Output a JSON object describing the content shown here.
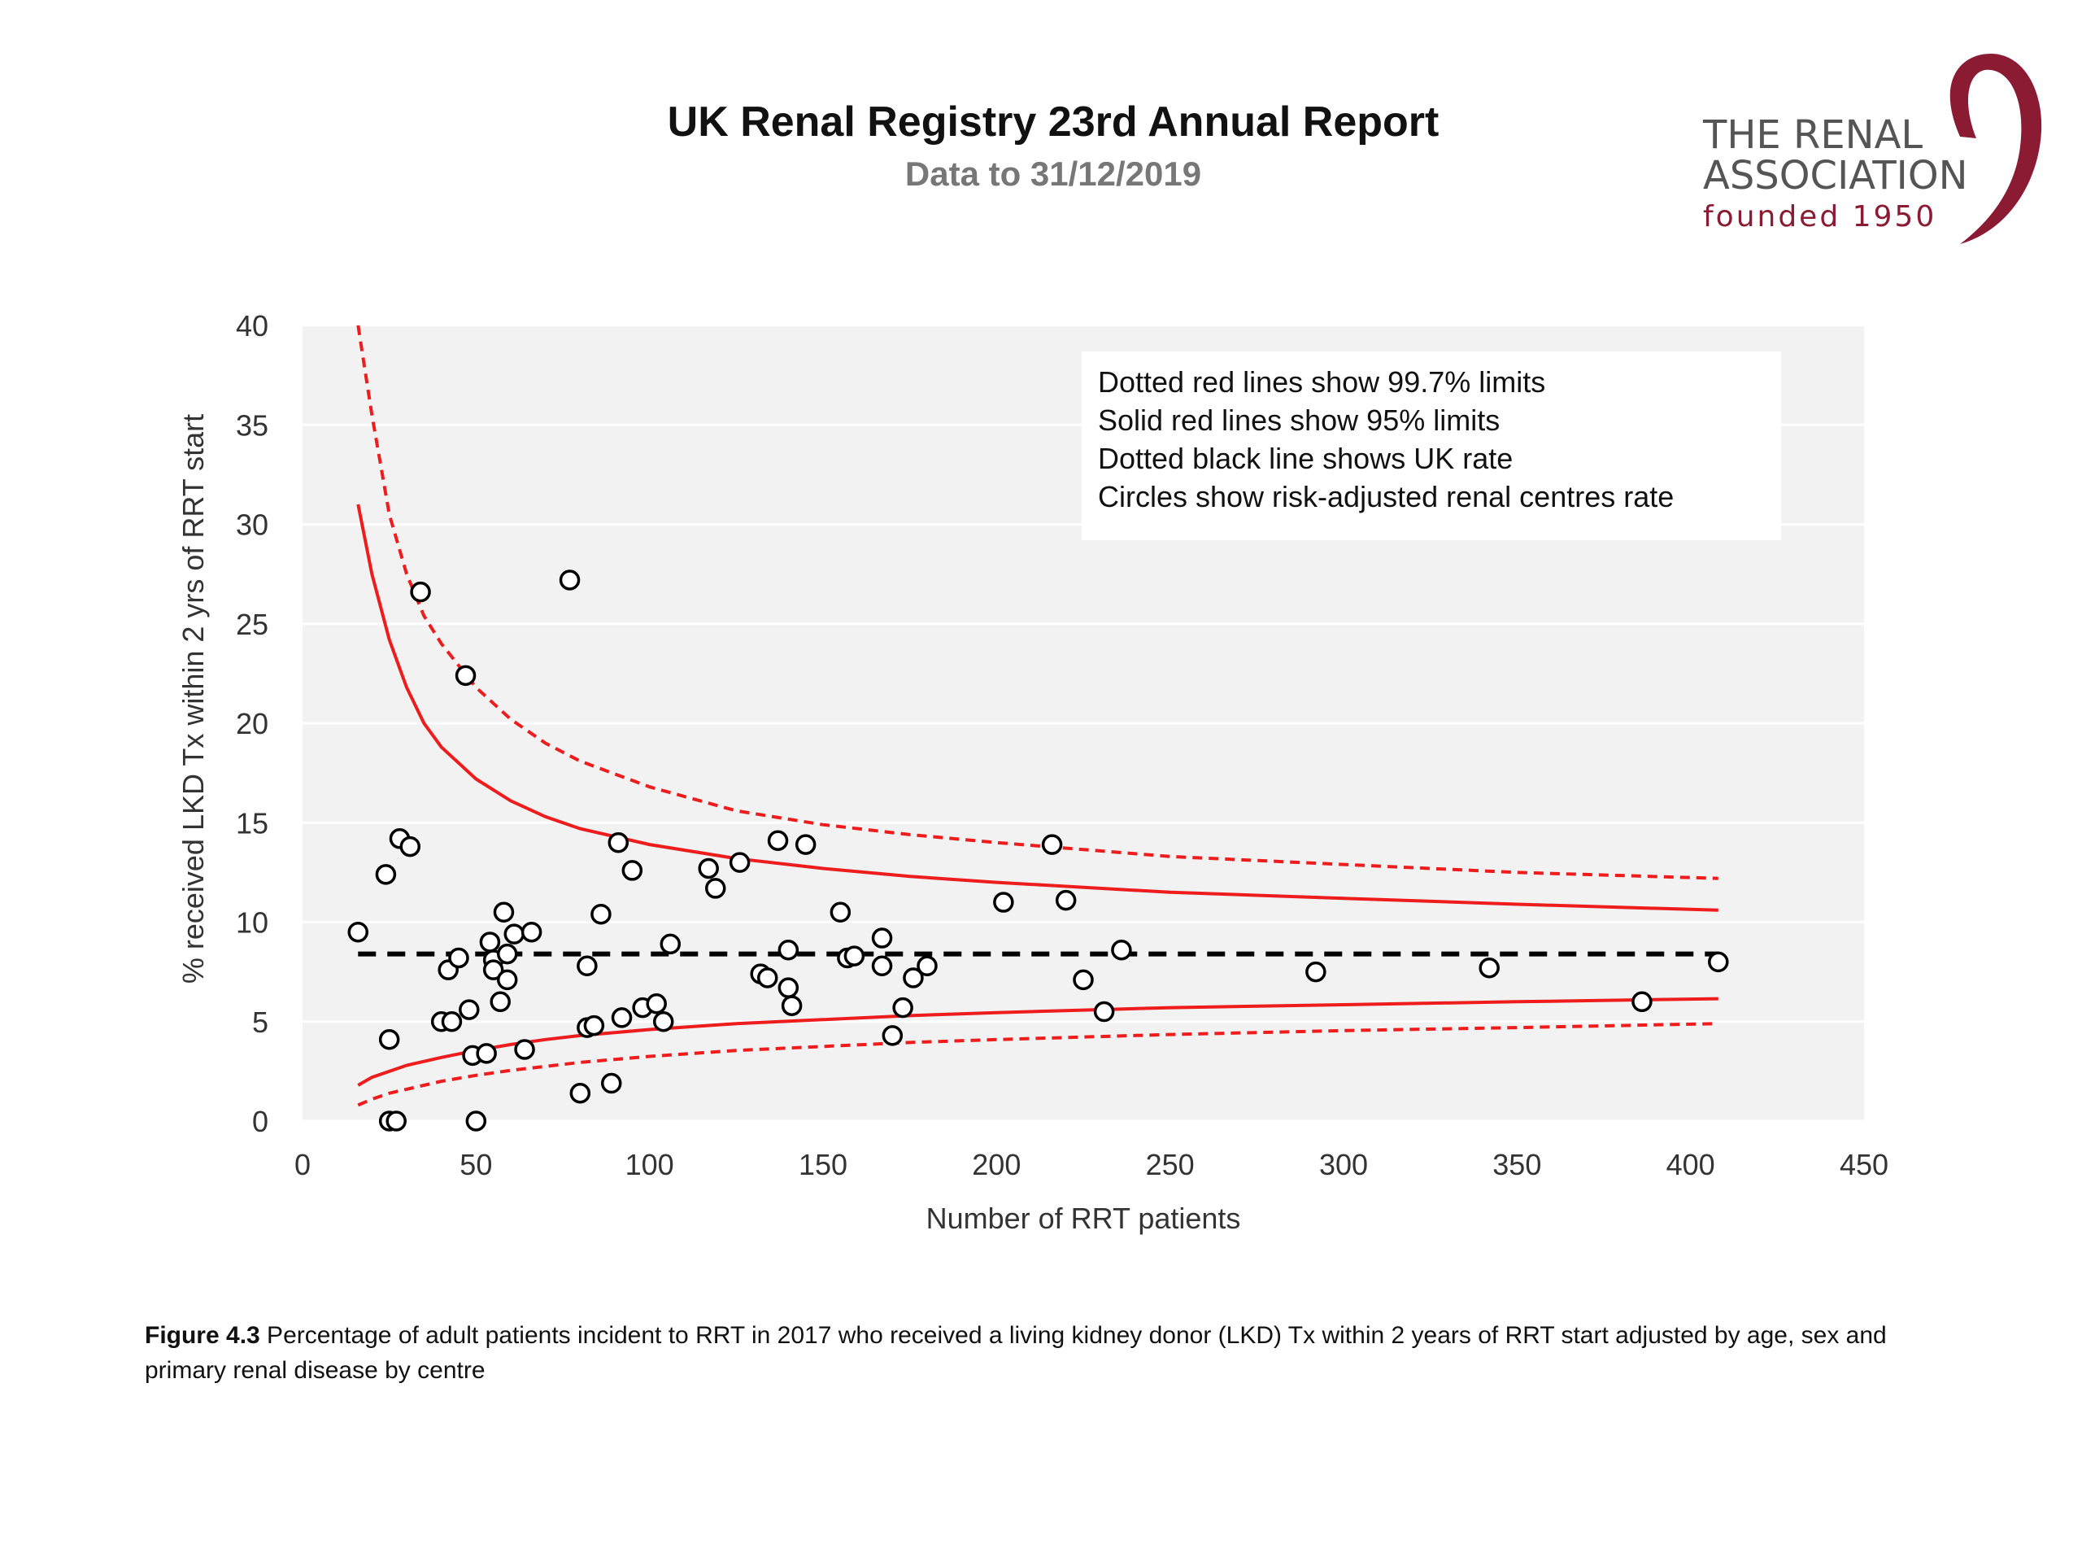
{
  "header": {
    "title": "UK Renal Registry 23rd Annual Report",
    "subtitle": "Data to 31/12/2019"
  },
  "logo": {
    "line1": "THE RENAL",
    "line2": "ASSOCIATION",
    "line3": "founded 1950",
    "color": "#8a1b33"
  },
  "chart_data": {
    "type": "scatter",
    "xlabel": "Number of RRT patients",
    "ylabel": "% received LKD Tx within 2 yrs of RRT start",
    "xlim": [
      0,
      450
    ],
    "ylim": [
      0,
      40
    ],
    "xticks": [
      0,
      50,
      100,
      150,
      200,
      250,
      300,
      350,
      400,
      450
    ],
    "yticks": [
      0,
      5,
      10,
      15,
      20,
      25,
      30,
      35,
      40
    ],
    "grid": "horizontal",
    "plot_background": "#f2f2f2",
    "legend_placement": "top-right",
    "legend_lines": [
      "Dotted red lines show 99.7% limits",
      "Solid red lines show 95% limits",
      "Dotted black line shows UK rate",
      "Circles show risk-adjusted renal centres rate"
    ],
    "uk_rate": 8.4,
    "limits_x": [
      16,
      20,
      25,
      30,
      35,
      40,
      50,
      60,
      70,
      80,
      100,
      125,
      150,
      175,
      200,
      250,
      300,
      350,
      408
    ],
    "upper_997": [
      41.0,
      35.5,
      30.5,
      27.5,
      25.4,
      24.0,
      21.8,
      20.2,
      19.0,
      18.1,
      16.8,
      15.6,
      14.9,
      14.4,
      14.0,
      13.3,
      12.9,
      12.5,
      12.2
    ],
    "upper_95": [
      31.0,
      27.5,
      24.2,
      21.8,
      20.0,
      18.8,
      17.2,
      16.1,
      15.3,
      14.7,
      13.9,
      13.2,
      12.7,
      12.3,
      12.0,
      11.5,
      11.2,
      10.9,
      10.6
    ],
    "lower_95": [
      1.8,
      2.2,
      2.5,
      2.8,
      3.0,
      3.2,
      3.55,
      3.85,
      4.1,
      4.3,
      4.6,
      4.9,
      5.1,
      5.3,
      5.45,
      5.7,
      5.85,
      6.0,
      6.15
    ],
    "lower_997": [
      0.8,
      1.1,
      1.4,
      1.6,
      1.8,
      2.0,
      2.3,
      2.55,
      2.75,
      2.95,
      3.25,
      3.55,
      3.75,
      3.95,
      4.1,
      4.35,
      4.55,
      4.7,
      4.9
    ],
    "points": [
      {
        "x": 16,
        "y": 9.5
      },
      {
        "x": 24,
        "y": 12.4
      },
      {
        "x": 25,
        "y": 4.1
      },
      {
        "x": 25,
        "y": 0
      },
      {
        "x": 27,
        "y": 0
      },
      {
        "x": 28,
        "y": 14.2
      },
      {
        "x": 31,
        "y": 13.8
      },
      {
        "x": 34,
        "y": 26.6
      },
      {
        "x": 40,
        "y": 5.0
      },
      {
        "x": 42,
        "y": 7.6
      },
      {
        "x": 43,
        "y": 5.0
      },
      {
        "x": 45,
        "y": 8.2
      },
      {
        "x": 47,
        "y": 22.4
      },
      {
        "x": 48,
        "y": 5.6
      },
      {
        "x": 49,
        "y": 3.3
      },
      {
        "x": 50,
        "y": 0
      },
      {
        "x": 53,
        "y": 3.4
      },
      {
        "x": 54,
        "y": 9.0
      },
      {
        "x": 55,
        "y": 8.1
      },
      {
        "x": 55,
        "y": 7.6
      },
      {
        "x": 57,
        "y": 6.0
      },
      {
        "x": 58,
        "y": 10.5
      },
      {
        "x": 59,
        "y": 8.4
      },
      {
        "x": 59,
        "y": 7.1
      },
      {
        "x": 61,
        "y": 9.4
      },
      {
        "x": 64,
        "y": 3.6
      },
      {
        "x": 66,
        "y": 9.5
      },
      {
        "x": 77,
        "y": 27.2
      },
      {
        "x": 80,
        "y": 1.4
      },
      {
        "x": 82,
        "y": 7.8
      },
      {
        "x": 82,
        "y": 4.7
      },
      {
        "x": 84,
        "y": 4.8
      },
      {
        "x": 86,
        "y": 10.4
      },
      {
        "x": 89,
        "y": 1.9
      },
      {
        "x": 91,
        "y": 14.0
      },
      {
        "x": 92,
        "y": 5.2
      },
      {
        "x": 95,
        "y": 12.6
      },
      {
        "x": 98,
        "y": 5.7
      },
      {
        "x": 102,
        "y": 5.9
      },
      {
        "x": 104,
        "y": 5.0
      },
      {
        "x": 106,
        "y": 8.9
      },
      {
        "x": 117,
        "y": 12.7
      },
      {
        "x": 119,
        "y": 11.7
      },
      {
        "x": 126,
        "y": 13.0
      },
      {
        "x": 132,
        "y": 7.4
      },
      {
        "x": 134,
        "y": 7.2
      },
      {
        "x": 137,
        "y": 14.1
      },
      {
        "x": 140,
        "y": 8.6
      },
      {
        "x": 140,
        "y": 6.7
      },
      {
        "x": 141,
        "y": 5.8
      },
      {
        "x": 145,
        "y": 13.9
      },
      {
        "x": 155,
        "y": 10.5
      },
      {
        "x": 157,
        "y": 8.2
      },
      {
        "x": 159,
        "y": 8.3
      },
      {
        "x": 167,
        "y": 9.2
      },
      {
        "x": 167,
        "y": 7.8
      },
      {
        "x": 170,
        "y": 4.3
      },
      {
        "x": 173,
        "y": 5.7
      },
      {
        "x": 176,
        "y": 7.2
      },
      {
        "x": 180,
        "y": 7.8
      },
      {
        "x": 202,
        "y": 11.0
      },
      {
        "x": 216,
        "y": 13.9
      },
      {
        "x": 220,
        "y": 11.1
      },
      {
        "x": 225,
        "y": 7.1
      },
      {
        "x": 231,
        "y": 5.5
      },
      {
        "x": 236,
        "y": 8.6
      },
      {
        "x": 292,
        "y": 7.5
      },
      {
        "x": 342,
        "y": 7.7
      },
      {
        "x": 386,
        "y": 6.0
      },
      {
        "x": 408,
        "y": 8.0
      }
    ]
  },
  "caption": {
    "label": "Figure 4.3",
    "text": " Percentage of adult patients incident to RRT in 2017 who received a living kidney donor (LKD) Tx within 2 years of RRT start adjusted by age, sex and primary renal disease by centre"
  }
}
